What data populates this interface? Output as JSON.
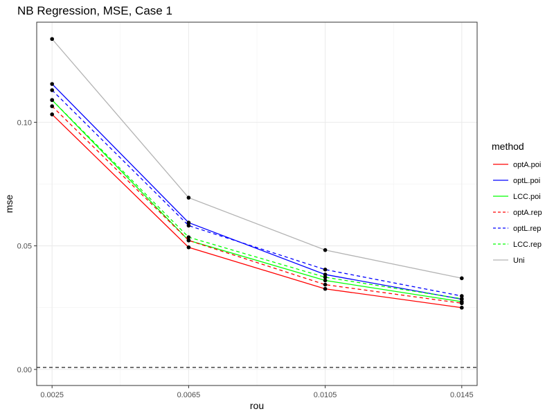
{
  "chart_data": {
    "type": "line",
    "title": "NB Regression, MSE, Case 1",
    "xlabel": "rou",
    "ylabel": "mse",
    "x": [
      0.0025,
      0.0065,
      0.0105,
      0.0145
    ],
    "x_tick_labels": [
      "0.0025",
      "0.0065",
      "0.0105",
      "0.0145"
    ],
    "y_ticks": [
      0.0,
      0.05,
      0.1
    ],
    "y_tick_labels": [
      "0.00",
      "0.05",
      "0.10"
    ],
    "xlim": [
      0.00205,
      0.01495
    ],
    "ylim": [
      -0.0065,
      0.1405
    ],
    "grid": true,
    "legend_title": "method",
    "legend_position": "right",
    "reference_line": {
      "y": 0.0008,
      "style": "dashed",
      "color": "#333333"
    },
    "series": [
      {
        "name": "optA.poi",
        "color": "#ff0000",
        "dash": "solid",
        "values": [
          0.1032,
          0.0494,
          0.0326,
          0.025
        ]
      },
      {
        "name": "optL.poi",
        "color": "#0000ff",
        "dash": "solid",
        "values": [
          0.1155,
          0.0594,
          0.0384,
          0.0284
        ]
      },
      {
        "name": "LCC.poi",
        "color": "#00ff00",
        "dash": "solid",
        "values": [
          0.109,
          0.0522,
          0.036,
          0.0274
        ]
      },
      {
        "name": "optA.rep",
        "color": "#ff0000",
        "dash": "dashed",
        "values": [
          0.1065,
          0.0522,
          0.0343,
          0.0268
        ]
      },
      {
        "name": "optL.rep",
        "color": "#0000ff",
        "dash": "dashed",
        "values": [
          0.113,
          0.0582,
          0.0404,
          0.0297
        ]
      },
      {
        "name": "LCC.rep",
        "color": "#00ff00",
        "dash": "dashed",
        "values": [
          0.109,
          0.0535,
          0.0373,
          0.0286
        ]
      },
      {
        "name": "Uni",
        "color": "#b3b3b3",
        "dash": "solid",
        "values": [
          0.1337,
          0.0695,
          0.0483,
          0.0369
        ]
      }
    ]
  }
}
